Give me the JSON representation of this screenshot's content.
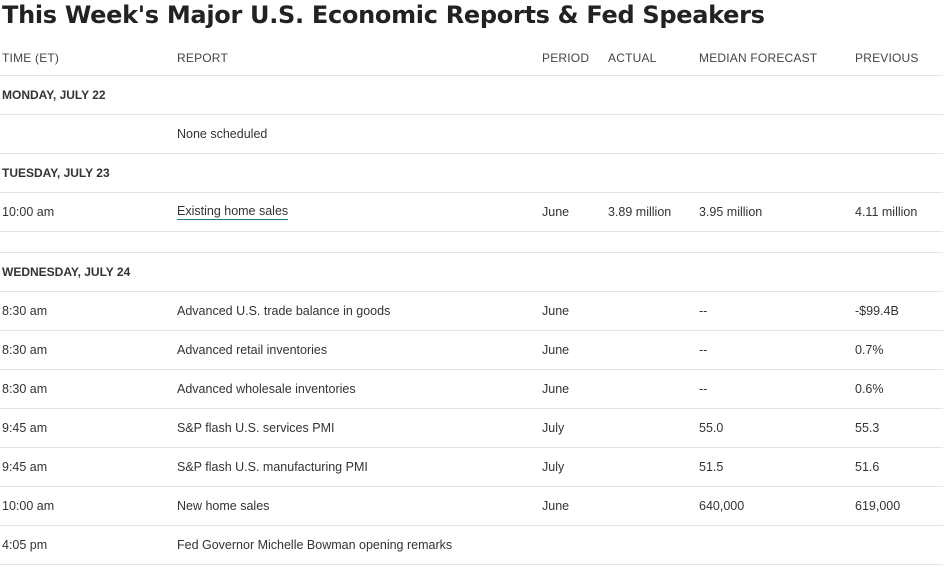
{
  "title": "This Week's Major U.S. Economic Reports & Fed Speakers",
  "columns": {
    "time": "TIME (ET)",
    "report": "REPORT",
    "period": "PERIOD",
    "actual": "ACTUAL",
    "forecast": "MEDIAN FORECAST",
    "previous": "PREVIOUS"
  },
  "days": [
    {
      "label": "MONDAY, JULY 22",
      "rows": [
        {
          "time": "",
          "report": "None scheduled",
          "period": "",
          "actual": "",
          "forecast": "",
          "previous": ""
        }
      ]
    },
    {
      "label": "TUESDAY, JULY 23",
      "rows": [
        {
          "time": "10:00 am",
          "report": "Existing home sales",
          "period": "June",
          "actual": "3.89 million",
          "forecast": "3.95 million",
          "previous": "4.11 million"
        }
      ]
    },
    {
      "label": "WEDNESDAY, JULY 24",
      "rows": [
        {
          "time": "8:30 am",
          "report": "Advanced U.S. trade balance in goods",
          "period": "June",
          "actual": "",
          "forecast": "--",
          "previous": "-$99.4B"
        },
        {
          "time": "8:30 am",
          "report": "Advanced retail inventories",
          "period": "June",
          "actual": "",
          "forecast": "--",
          "previous": "0.7%"
        },
        {
          "time": "8:30 am",
          "report": "Advanced wholesale inventories",
          "period": "June",
          "actual": "",
          "forecast": "--",
          "previous": "0.6%"
        },
        {
          "time": "9:45 am",
          "report": "S&P flash U.S. services PMI",
          "period": "July",
          "actual": "",
          "forecast": "55.0",
          "previous": "55.3"
        },
        {
          "time": "9:45 am",
          "report": "S&P flash U.S. manufacturing PMI",
          "period": "July",
          "actual": "",
          "forecast": "51.5",
          "previous": "51.6"
        },
        {
          "time": "10:00 am",
          "report": "New home sales",
          "period": "June",
          "actual": "",
          "forecast": "640,000",
          "previous": "619,000"
        },
        {
          "time": "4:05 pm",
          "report": "Fed Governor Michelle Bowman opening remarks",
          "period": "",
          "actual": "",
          "forecast": "",
          "previous": ""
        }
      ]
    }
  ]
}
